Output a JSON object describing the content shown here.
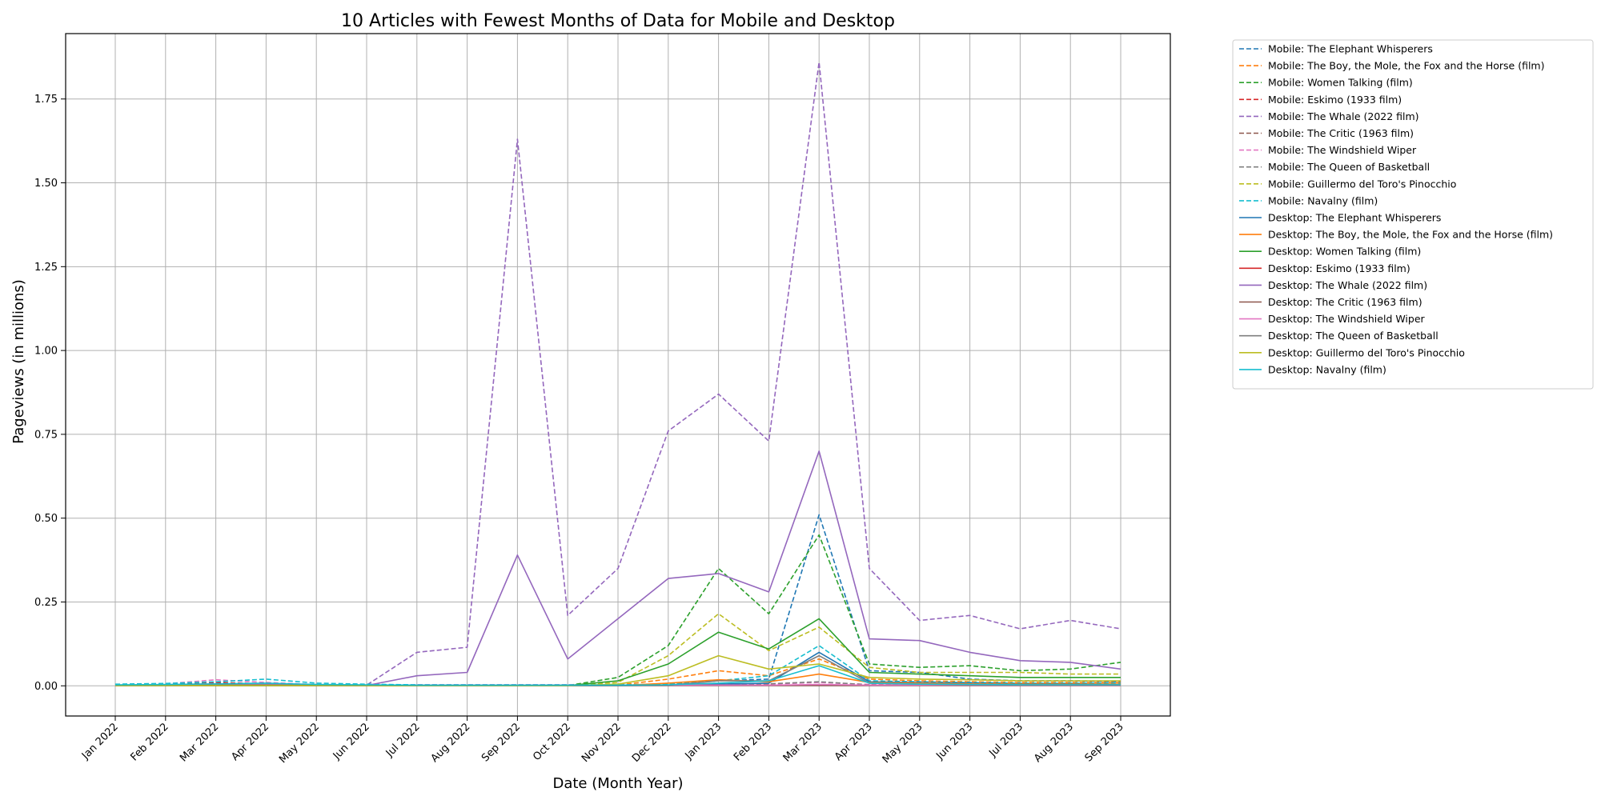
{
  "chart_data": {
    "type": "line",
    "title": "10 Articles with Fewest Months of Data for Mobile and Desktop",
    "xlabel": "Date (Month Year)",
    "ylabel": "Pageviews (in millions)",
    "x": [
      "Jan 2022",
      "Feb 2022",
      "Mar 2022",
      "Apr 2022",
      "May 2022",
      "Jun 2022",
      "Jul 2022",
      "Aug 2022",
      "Sep 2022",
      "Oct 2022",
      "Nov 2022",
      "Dec 2022",
      "Jan 2023",
      "Feb 2023",
      "Mar 2023",
      "Apr 2023",
      "May 2023",
      "Jun 2023",
      "Jul 2023",
      "Aug 2023",
      "Sep 2023"
    ],
    "yticks": [
      "0.00",
      "0.25",
      "0.50",
      "0.75",
      "1.00",
      "1.25",
      "1.50",
      "1.75"
    ],
    "ylim": [
      -0.09,
      1.945
    ],
    "grid": true,
    "legend_position": "outside-right",
    "series": [
      {
        "name": "Mobile: The Elephant Whisperers",
        "color": "#1f77b4",
        "dash": "dashed",
        "values": [
          0.002,
          0.003,
          0.003,
          0.003,
          0.003,
          0.003,
          0.003,
          0.003,
          0.003,
          0.003,
          0.003,
          0.005,
          0.015,
          0.02,
          0.51,
          0.045,
          0.04,
          0.02,
          0.015,
          0.015,
          0.012
        ]
      },
      {
        "name": "Mobile: The Boy, the Mole, the Fox and the Horse (film)",
        "color": "#ff7f0e",
        "dash": "dashed",
        "values": [
          0.001,
          0.001,
          0.001,
          0.001,
          0.001,
          0.001,
          0.001,
          0.001,
          0.001,
          0.001,
          0.002,
          0.02,
          0.045,
          0.03,
          0.08,
          0.02,
          0.015,
          0.012,
          0.01,
          0.01,
          0.01
        ]
      },
      {
        "name": "Mobile: Women Talking (film)",
        "color": "#2ca02c",
        "dash": "dashed",
        "values": [
          0.001,
          0.001,
          0.001,
          0.001,
          0.001,
          0.001,
          0.001,
          0.001,
          0.001,
          0.001,
          0.025,
          0.12,
          0.35,
          0.215,
          0.45,
          0.065,
          0.055,
          0.06,
          0.045,
          0.05,
          0.07
        ]
      },
      {
        "name": "Mobile: Eskimo (1933 film)",
        "color": "#d62728",
        "dash": "dashed",
        "values": [
          0.003,
          0.005,
          0.01,
          0.006,
          0.003,
          0.002,
          0.002,
          0.002,
          0.002,
          0.002,
          0.002,
          0.002,
          0.002,
          0.002,
          0.002,
          0.002,
          0.002,
          0.002,
          0.002,
          0.002,
          0.002
        ]
      },
      {
        "name": "Mobile: The Whale (2022 film)",
        "color": "#9467bd",
        "dash": "dashed",
        "values": [
          0.002,
          0.002,
          0.002,
          0.002,
          0.002,
          0.002,
          0.1,
          0.115,
          1.63,
          0.21,
          0.35,
          0.76,
          0.87,
          0.73,
          1.86,
          0.35,
          0.195,
          0.21,
          0.17,
          0.195,
          0.17
        ]
      },
      {
        "name": "Mobile: The Critic (1963 film)",
        "color": "#8c564b",
        "dash": "dashed",
        "values": [
          0.002,
          0.003,
          0.003,
          0.003,
          0.002,
          0.002,
          0.002,
          0.002,
          0.002,
          0.002,
          0.002,
          0.002,
          0.002,
          0.002,
          0.002,
          0.002,
          0.002,
          0.002,
          0.002,
          0.002,
          0.002
        ]
      },
      {
        "name": "Mobile: The Windshield Wiper",
        "color": "#e377c2",
        "dash": "dashed",
        "values": [
          0.003,
          0.006,
          0.018,
          0.01,
          0.004,
          0.003,
          0.003,
          0.003,
          0.003,
          0.003,
          0.003,
          0.003,
          0.005,
          0.005,
          0.01,
          0.004,
          0.003,
          0.003,
          0.003,
          0.003,
          0.003
        ]
      },
      {
        "name": "Mobile: The Queen of Basketball",
        "color": "#7f7f7f",
        "dash": "dashed",
        "values": [
          0.002,
          0.003,
          0.005,
          0.004,
          0.003,
          0.002,
          0.002,
          0.002,
          0.002,
          0.002,
          0.002,
          0.002,
          0.005,
          0.006,
          0.012,
          0.003,
          0.002,
          0.002,
          0.002,
          0.002,
          0.002
        ]
      },
      {
        "name": "Mobile: Guillermo del Toro's Pinocchio",
        "color": "#bcbd22",
        "dash": "dashed",
        "values": [
          0.001,
          0.001,
          0.001,
          0.001,
          0.001,
          0.001,
          0.001,
          0.001,
          0.001,
          0.001,
          0.01,
          0.09,
          0.215,
          0.105,
          0.175,
          0.055,
          0.04,
          0.04,
          0.04,
          0.035,
          0.035
        ]
      },
      {
        "name": "Mobile: Navalny (film)",
        "color": "#17becf",
        "dash": "dashed",
        "values": [
          0.005,
          0.007,
          0.012,
          0.02,
          0.008,
          0.005,
          0.003,
          0.003,
          0.003,
          0.003,
          0.003,
          0.005,
          0.015,
          0.03,
          0.12,
          0.015,
          0.012,
          0.01,
          0.008,
          0.008,
          0.008
        ]
      },
      {
        "name": "Desktop: The Elephant Whisperers",
        "color": "#1f77b4",
        "dash": "solid",
        "values": [
          0.001,
          0.001,
          0.001,
          0.001,
          0.001,
          0.001,
          0.001,
          0.001,
          0.001,
          0.001,
          0.001,
          0.002,
          0.005,
          0.008,
          0.1,
          0.012,
          0.01,
          0.008,
          0.006,
          0.006,
          0.005
        ]
      },
      {
        "name": "Desktop: The Boy, the Mole, the Fox and the Horse (film)",
        "color": "#ff7f0e",
        "dash": "solid",
        "values": [
          0.001,
          0.001,
          0.001,
          0.001,
          0.001,
          0.001,
          0.001,
          0.001,
          0.001,
          0.001,
          0.001,
          0.008,
          0.018,
          0.012,
          0.035,
          0.01,
          0.008,
          0.006,
          0.005,
          0.005,
          0.005
        ]
      },
      {
        "name": "Desktop: Women Talking (film)",
        "color": "#2ca02c",
        "dash": "solid",
        "values": [
          0.001,
          0.001,
          0.001,
          0.001,
          0.001,
          0.001,
          0.001,
          0.001,
          0.001,
          0.001,
          0.015,
          0.065,
          0.16,
          0.11,
          0.2,
          0.04,
          0.035,
          0.03,
          0.025,
          0.025,
          0.025
        ]
      },
      {
        "name": "Desktop: Eskimo (1933 film)",
        "color": "#d62728",
        "dash": "solid",
        "values": [
          0.002,
          0.003,
          0.004,
          0.003,
          0.002,
          0.002,
          0.002,
          0.002,
          0.002,
          0.002,
          0.002,
          0.002,
          0.002,
          0.002,
          0.002,
          0.002,
          0.002,
          0.002,
          0.002,
          0.002,
          0.002
        ]
      },
      {
        "name": "Desktop: The Whale (2022 film)",
        "color": "#9467bd",
        "dash": "solid",
        "values": [
          0.001,
          0.001,
          0.001,
          0.001,
          0.001,
          0.001,
          0.03,
          0.04,
          0.39,
          0.08,
          0.2,
          0.32,
          0.335,
          0.28,
          0.7,
          0.14,
          0.135,
          0.1,
          0.075,
          0.07,
          0.05
        ]
      },
      {
        "name": "Desktop: The Critic (1963 film)",
        "color": "#8c564b",
        "dash": "solid",
        "values": [
          0.001,
          0.002,
          0.002,
          0.002,
          0.001,
          0.001,
          0.001,
          0.001,
          0.001,
          0.001,
          0.001,
          0.001,
          0.001,
          0.001,
          0.001,
          0.001,
          0.001,
          0.001,
          0.001,
          0.001,
          0.001
        ]
      },
      {
        "name": "Desktop: The Windshield Wiper",
        "color": "#e377c2",
        "dash": "solid",
        "values": [
          0.002,
          0.003,
          0.006,
          0.004,
          0.002,
          0.002,
          0.002,
          0.002,
          0.002,
          0.002,
          0.002,
          0.002,
          0.002,
          0.002,
          0.004,
          0.002,
          0.002,
          0.002,
          0.002,
          0.002,
          0.002
        ]
      },
      {
        "name": "Desktop: The Queen of Basketball",
        "color": "#7f7f7f",
        "dash": "solid",
        "values": [
          0.002,
          0.002,
          0.003,
          0.003,
          0.002,
          0.002,
          0.001,
          0.001,
          0.001,
          0.001,
          0.001,
          0.002,
          0.015,
          0.015,
          0.09,
          0.008,
          0.005,
          0.003,
          0.003,
          0.003,
          0.003
        ]
      },
      {
        "name": "Desktop: Guillermo del Toro's Pinocchio",
        "color": "#bcbd22",
        "dash": "solid",
        "values": [
          0.001,
          0.001,
          0.001,
          0.001,
          0.001,
          0.001,
          0.001,
          0.001,
          0.001,
          0.001,
          0.005,
          0.03,
          0.09,
          0.05,
          0.065,
          0.025,
          0.02,
          0.018,
          0.015,
          0.015,
          0.015
        ]
      },
      {
        "name": "Desktop: Navalny (film)",
        "color": "#17becf",
        "dash": "solid",
        "values": [
          0.003,
          0.004,
          0.006,
          0.008,
          0.004,
          0.003,
          0.002,
          0.002,
          0.002,
          0.002,
          0.002,
          0.003,
          0.008,
          0.015,
          0.06,
          0.008,
          0.005,
          0.004,
          0.003,
          0.003,
          0.003
        ]
      }
    ]
  }
}
